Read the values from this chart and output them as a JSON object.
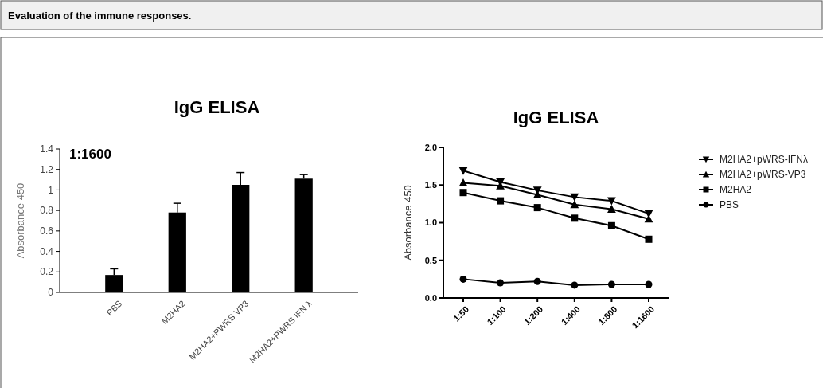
{
  "chart_data": [
    {
      "type": "bar",
      "title": "IgG ELISA",
      "ylabel": "Absorbance 450",
      "annotations": [
        "Evaluation of the immune responses.",
        "1:1600"
      ],
      "categories": [
        "PBS",
        "M2HA2",
        "M2HA2+PWRS VP3",
        "M2HA2+PWRS IFN λ"
      ],
      "values": [
        0.17,
        0.78,
        1.05,
        1.11
      ],
      "color": "#000000",
      "errors": [
        [
          0.17,
          0.23
        ],
        [
          0.78,
          0.87
        ],
        [
          1.05,
          1.17
        ],
        [
          1.11,
          1.15
        ]
      ],
      "ylim": [
        0,
        1.4
      ],
      "yticks": [
        0,
        0.2,
        0.4,
        0.6,
        0.8,
        1,
        1.2,
        1.4
      ],
      "grid": false
    },
    {
      "type": "line",
      "title": "IgG ELISA",
      "ylabel": "Absorbance 450",
      "categories": [
        "1:50",
        "1:100",
        "1:200",
        "1:400",
        "1:800",
        "1:1600"
      ],
      "series": [
        {
          "name": "M2HA2+pWRS-IFNλ",
          "color": "#000000",
          "marker": "triangle-down",
          "values": [
            1.69,
            1.54,
            1.43,
            1.34,
            1.29,
            1.12
          ]
        },
        {
          "name": "M2HA2+pWRS-VP3",
          "color": "#000000",
          "marker": "triangle",
          "values": [
            1.53,
            1.49,
            1.37,
            1.24,
            1.18,
            1.05
          ]
        },
        {
          "name": "M2HA2",
          "color": "#000000",
          "marker": "square",
          "values": [
            1.4,
            1.29,
            1.2,
            1.06,
            0.96,
            0.78
          ]
        },
        {
          "name": "PBS",
          "color": "#000000",
          "marker": "circle",
          "values": [
            0.25,
            0.2,
            0.22,
            0.17,
            0.18,
            0.18
          ]
        }
      ],
      "ylim": [
        0,
        2.0
      ],
      "yticks": [
        {
          "value": 0,
          "label": "0.0"
        },
        {
          "value": 0.5,
          "label": "0.5"
        },
        {
          "value": 1,
          "label": "1.0"
        },
        {
          "value": 1.5,
          "label": "1.5"
        },
        {
          "value": 2,
          "label": "2.0"
        }
      ],
      "grid": false,
      "legend": "right",
      "line_style": "solid"
    }
  ]
}
